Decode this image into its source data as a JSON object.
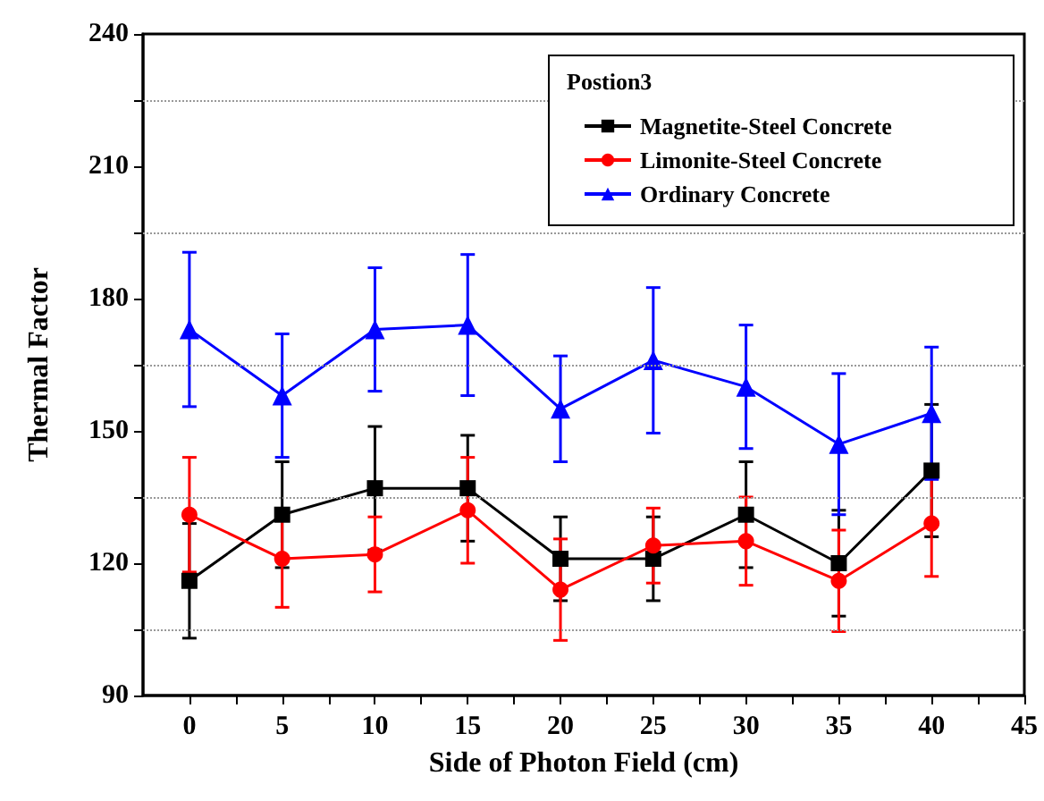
{
  "chart_data": {
    "type": "line",
    "xlabel": "Side of Photon Field (cm)",
    "ylabel": "Thermal Factor",
    "legend_title": "Postion3",
    "x": [
      0,
      5,
      10,
      15,
      20,
      25,
      30,
      35,
      40
    ],
    "series": [
      {
        "name": "Magnetite-Steel Concrete",
        "color": "#000000",
        "marker": "square",
        "values": [
          116,
          131,
          137,
          137,
          121,
          121,
          131,
          120,
          141
        ],
        "errors": [
          13,
          12,
          14,
          12,
          9.5,
          9.5,
          12,
          12,
          15
        ]
      },
      {
        "name": "Limonite-Steel Concrete",
        "color": "#ff0000",
        "marker": "circle",
        "values": [
          131,
          121,
          122,
          132,
          114,
          124,
          125,
          116,
          129
        ],
        "errors": [
          13,
          11,
          8.5,
          12,
          11.5,
          8.5,
          10,
          11.5,
          12
        ]
      },
      {
        "name": "Ordinary Concrete",
        "color": "#0000ff",
        "marker": "triangle",
        "values": [
          173,
          158,
          173,
          174,
          155,
          166,
          160,
          147,
          154
        ],
        "errors": [
          17.5,
          14,
          14,
          16,
          12,
          16.5,
          14,
          16,
          15
        ]
      }
    ],
    "xlim": [
      -2.5,
      45
    ],
    "xticks": [
      0,
      {
        "value": 2.5,
        "label": null
      },
      5,
      {
        "value": 7.5,
        "label": null
      },
      10,
      {
        "value": 12.5,
        "label": null
      },
      15,
      {
        "value": 17.5,
        "label": null
      },
      20,
      {
        "value": 22.5,
        "label": null
      },
      25,
      {
        "value": 27.5,
        "label": null
      },
      30,
      {
        "value": 32.5,
        "label": null
      },
      35,
      {
        "value": 37.5,
        "label": null
      },
      40,
      {
        "value": 42.5,
        "label": null
      },
      45
    ],
    "ylim": [
      90,
      240
    ],
    "yticks": [
      90,
      {
        "value": 105,
        "label": null
      },
      120,
      {
        "value": 135,
        "label": null
      },
      150,
      {
        "value": 165,
        "label": null
      },
      180,
      {
        "value": 195,
        "label": null
      },
      210,
      {
        "value": 225,
        "label": null
      },
      240
    ],
    "grid": "y",
    "legend": "top right",
    "line_style": "solid"
  }
}
